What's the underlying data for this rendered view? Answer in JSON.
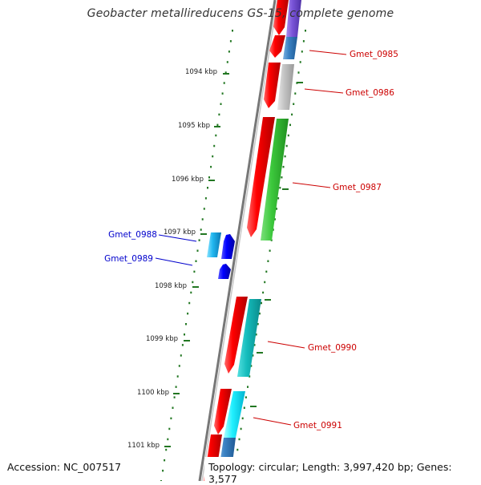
{
  "title": "Geobacter metallireducens GS-15, complete genome",
  "accession": "Accession: NC_007517",
  "topology": "Topology: circular; Length: 3,997,420 bp; Genes: 3,577",
  "kbp_labels": [
    "1094 kbp",
    "1095 kbp",
    "1096 kbp",
    "1097 kbp",
    "1098 kbp",
    "1099 kbp",
    "1100 kbp",
    "1101 kbp"
  ],
  "genes_forward": [
    {
      "name": "Gmet_0985",
      "color": "#d0002a"
    },
    {
      "name": "Gmet_0986",
      "color": "#d0002a"
    },
    {
      "name": "Gmet_0987",
      "color": "#d0002a"
    },
    {
      "name": "Gmet_0990",
      "color": "#d0002a"
    },
    {
      "name": "Gmet_0991",
      "color": "#d0002a"
    }
  ],
  "genes_reverse": [
    {
      "name": "Gmet_0988",
      "color": "#0000cc"
    },
    {
      "name": "Gmet_0989",
      "color": "#0000cc"
    }
  ],
  "colors": {
    "cds_red": "#ff0000",
    "blue_gene": "#0000ff",
    "scale_green": "#227722",
    "backbone": "#777777"
  }
}
